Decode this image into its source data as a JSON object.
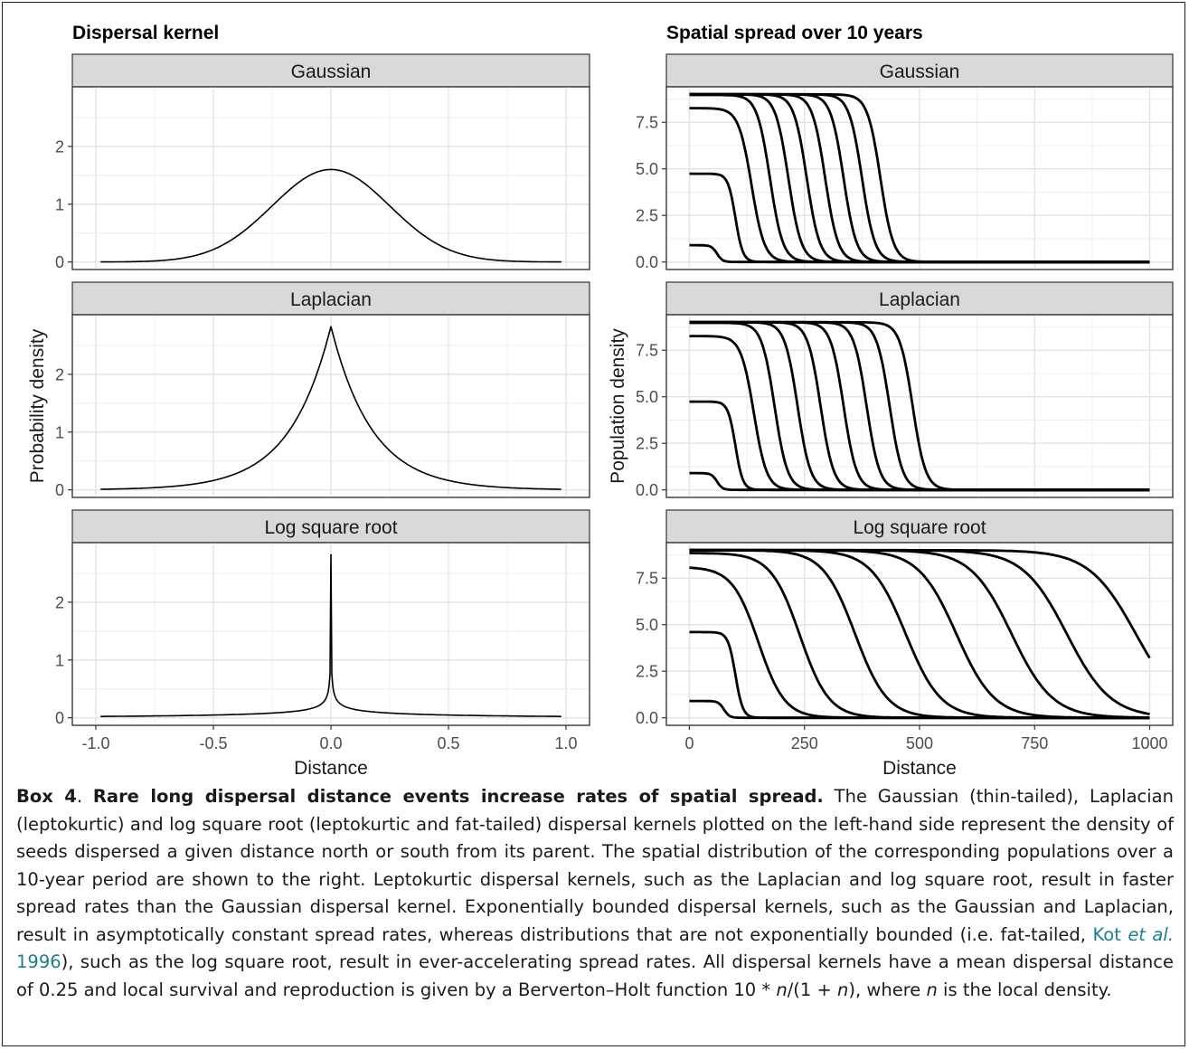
{
  "left_title": "Dispersal kernel",
  "right_title": "Spatial spread over 10 years",
  "left_ylabel": "Probability density",
  "right_ylabel": "Population density",
  "left_xlabel": "Distance",
  "right_xlabel": "Distance",
  "caption": {
    "box_label": "Box 4",
    "sep": ". ",
    "headline": "Rare long dispersal distance events increase rates of spatial spread.",
    "body1": " The Gaussian (thin-tailed), Laplacian (leptokurtic) and log square root (leptokurtic and fat-tailed) dispersal kernels plotted on the left-hand side represent the density of seeds dispersed a given distance north or south from its parent. The spatial distribution of the corresponding populations over a 10-year period are shown to the right. Leptokurtic dispersal kernels, such as the Laplacian and log square root, result in faster spread rates than the Gaussian dispersal kernel. Exponentially bounded dispersal kernels, such as the Gaussian and Laplacian, result in asymptotically constant spread rates, whereas distributions that are not exponentially bounded (i.e. fat-tailed, ",
    "cite_author": "Kot ",
    "cite_etal": "et al.",
    "cite_year": " 1996",
    "body2": "), such as the log square root, result in ever-accelerating spread rates. All dispersal kernels have a mean dispersal distance of 0.25 and local survival and reproduction is given by a Berverton–Holt function 10 * ",
    "n1": "n",
    "mid": "/(1 + ",
    "n2": "n",
    "mid2": "), where ",
    "n3": "n",
    "end": " is the local density."
  },
  "colors": {
    "strip_fill": "#d9d9d9",
    "grid": "#ebebeb",
    "line": "#000000",
    "link": "#1a7f8e"
  },
  "chart_data": [
    {
      "type": "line",
      "panel": "left",
      "facets": [
        "Gaussian",
        "Laplacian",
        "Log square root"
      ],
      "xlim": [
        -1.0,
        1.0
      ],
      "ylim": [
        0,
        2.9
      ],
      "x_ticks": [
        -1.0,
        -0.5,
        0.0,
        0.5,
        1.0
      ],
      "x_tick_labels": [
        "-1.0",
        "-0.5",
        "0.0",
        "0.5",
        "1.0"
      ],
      "y_ticks": [
        0,
        1,
        2
      ],
      "y_tick_labels": [
        "0",
        "1",
        "2"
      ],
      "xlabel": "Distance",
      "ylabel": "Probability density",
      "series": [
        {
          "facet": "Gaussian",
          "peak": 1.6,
          "x": [
            -0.98,
            -0.8,
            -0.6,
            -0.4,
            -0.2,
            0.0,
            0.2,
            0.4,
            0.6,
            0.8,
            0.98
          ],
          "y": [
            0.0,
            0.01,
            0.05,
            0.24,
            0.96,
            1.6,
            0.96,
            0.24,
            0.05,
            0.01,
            0.0
          ]
        },
        {
          "facet": "Laplacian",
          "peak": 2.83,
          "x": [
            -0.98,
            -0.8,
            -0.6,
            -0.4,
            -0.2,
            0.0,
            0.2,
            0.4,
            0.6,
            0.8,
            0.98
          ],
          "y": [
            0.0,
            0.03,
            0.09,
            0.3,
            0.97,
            2.83,
            0.97,
            0.3,
            0.09,
            0.03,
            0.0
          ]
        },
        {
          "facet": "Log square root",
          "peak": 2.83,
          "x": [
            -0.98,
            -0.5,
            -0.2,
            -0.1,
            -0.05,
            0.0,
            0.05,
            0.1,
            0.2,
            0.5,
            0.98
          ],
          "y": [
            0.01,
            0.05,
            0.15,
            0.29,
            0.55,
            2.83,
            0.55,
            0.29,
            0.15,
            0.05,
            0.01
          ]
        }
      ]
    },
    {
      "type": "line",
      "panel": "right",
      "facets": [
        "Gaussian",
        "Laplacian",
        "Log square root"
      ],
      "xlim": [
        0,
        1000
      ],
      "ylim": [
        0,
        9
      ],
      "x_ticks": [
        0,
        250,
        500,
        750,
        1000
      ],
      "x_tick_labels": [
        "0",
        "250",
        "500",
        "750",
        "1000"
      ],
      "y_ticks": [
        0,
        2.5,
        5,
        7.5
      ],
      "y_tick_labels": [
        "0.0",
        "2.5",
        "5.0",
        "7.5"
      ],
      "xlabel": "Distance",
      "ylabel": "Population density",
      "series": [
        {
          "facet": "Gaussian",
          "years": [
            1,
            2,
            3,
            4,
            5,
            6,
            7,
            8,
            9,
            10
          ],
          "plateau": [
            0.9,
            4.74,
            8.26,
            8.97,
            9.0,
            9.0,
            9.0,
            9.0,
            9.0,
            9.0
          ],
          "front_distance": [
            60,
            100,
            135,
            175,
            215,
            255,
            295,
            335,
            375,
            415
          ]
        },
        {
          "facet": "Laplacian",
          "years": [
            1,
            2,
            3,
            4,
            5,
            6,
            7,
            8,
            9,
            10
          ],
          "plateau": [
            0.9,
            4.74,
            8.26,
            8.97,
            9.0,
            9.0,
            9.0,
            9.0,
            9.0,
            9.0
          ],
          "front_distance": [
            60,
            100,
            140,
            185,
            235,
            285,
            335,
            385,
            435,
            485
          ]
        },
        {
          "facet": "Log square root",
          "years": [
            1,
            2,
            3,
            4,
            5,
            6,
            7,
            8,
            9,
            10
          ],
          "plateau": [
            0.9,
            4.6,
            8.1,
            8.85,
            9.0,
            9.0,
            9.0,
            9.0,
            9.0,
            9.0
          ],
          "front_distance": [
            75,
            100,
            150,
            240,
            360,
            470,
            580,
            700,
            820,
            970
          ]
        }
      ]
    }
  ]
}
